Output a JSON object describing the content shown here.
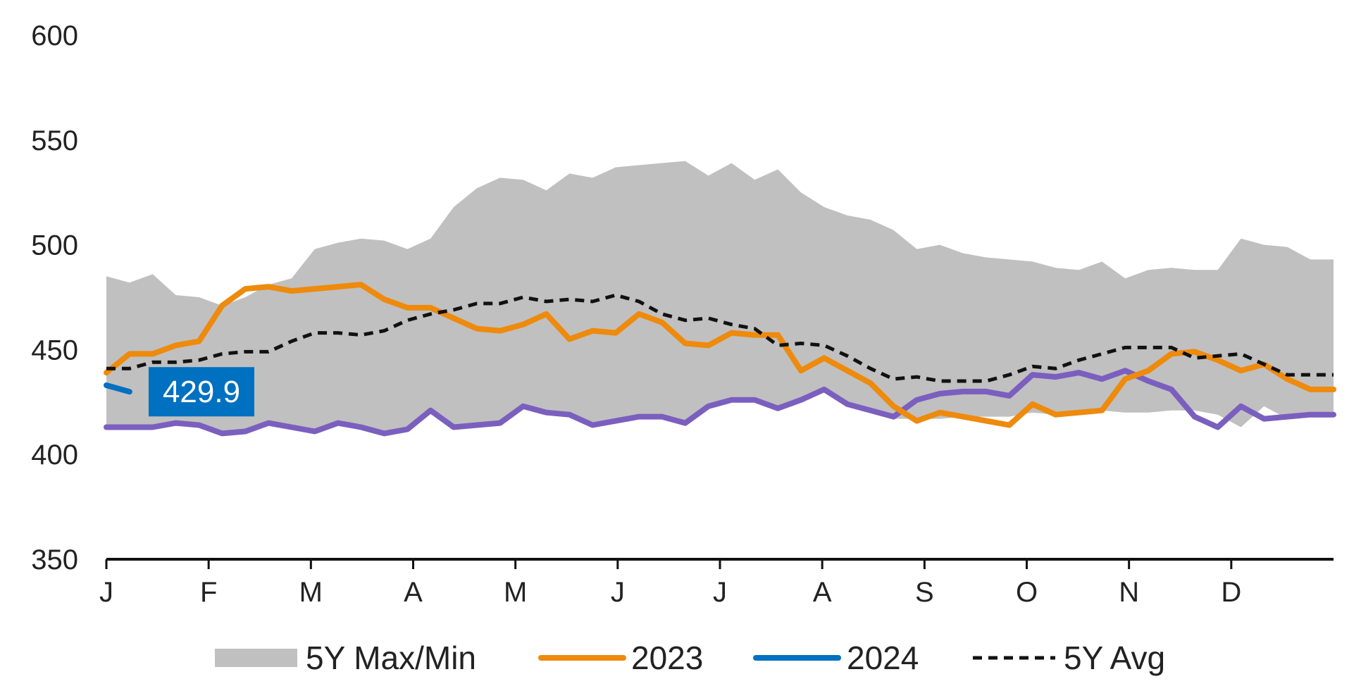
{
  "chart_data": {
    "type": "line",
    "title": "",
    "xlabel": "",
    "ylabel": "",
    "ylim": [
      350,
      600
    ],
    "yticks": [
      350,
      400,
      450,
      500,
      550,
      600
    ],
    "month_labels": [
      "J",
      "F",
      "M",
      "A",
      "M",
      "J",
      "J",
      "A",
      "S",
      "O",
      "N",
      "D"
    ],
    "weeks": 53,
    "grid": false,
    "legend_position": "bottom",
    "band": {
      "name": "5Y Max/Min",
      "color": "#c0c0c0",
      "max": [
        485,
        482,
        486,
        476,
        475,
        471,
        475,
        481,
        484,
        498,
        501,
        503,
        502,
        498,
        503,
        518,
        527,
        532,
        531,
        526,
        534,
        532,
        537,
        538,
        539,
        540,
        533,
        539,
        531,
        536,
        525,
        518,
        514,
        512,
        507,
        498,
        500,
        496,
        494,
        493,
        492,
        489,
        488,
        492,
        484,
        488,
        489,
        488,
        488,
        503,
        500,
        499,
        493,
        493
      ],
      "min": [
        413,
        413,
        413,
        414,
        414,
        410,
        411,
        415,
        413,
        411,
        414,
        413,
        410,
        412,
        421,
        413,
        414,
        415,
        423,
        420,
        419,
        414,
        416,
        418,
        418,
        415,
        423,
        426,
        426,
        422,
        426,
        431,
        424,
        420,
        417,
        417,
        417,
        418,
        418,
        418,
        420,
        419,
        420,
        421,
        420,
        420,
        421,
        421,
        419,
        413,
        423,
        417,
        418,
        419
      ]
    },
    "series": [
      {
        "name": "2023",
        "color": "#ee8a0c",
        "dashed": false,
        "values": [
          439,
          448,
          448,
          452,
          454,
          471,
          479,
          480,
          478,
          479,
          480,
          481,
          474,
          470,
          470,
          465,
          460,
          459,
          462,
          467,
          455,
          459,
          458,
          467,
          463,
          453,
          452,
          458,
          457,
          457,
          440,
          446,
          440,
          434,
          423,
          416,
          420,
          418,
          416,
          414,
          424,
          419,
          420,
          421,
          436,
          440,
          448,
          449,
          445,
          440,
          443,
          436,
          431,
          431
        ]
      },
      {
        "name": "2024",
        "color": "#0070c0",
        "dashed": false,
        "values": [
          433,
          429.9
        ]
      },
      {
        "name": "5Y Avg",
        "color": "#111111",
        "dashed": true,
        "values": [
          441,
          441,
          444,
          444,
          445,
          448,
          449,
          449,
          454,
          458,
          458,
          457,
          459,
          464,
          467,
          469,
          472,
          472,
          475,
          473,
          474,
          473,
          476,
          473,
          467,
          464,
          465,
          462,
          460,
          452,
          453,
          452,
          447,
          441,
          436,
          437,
          435,
          435,
          435,
          438,
          442,
          441,
          445,
          448,
          451,
          451,
          451,
          446,
          447,
          448,
          443,
          438,
          438,
          438
        ]
      },
      {
        "name": "",
        "color": "#7b5fbf",
        "dashed": false,
        "values": [
          413,
          413,
          413,
          415,
          414,
          410,
          411,
          415,
          413,
          411,
          415,
          413,
          410,
          412,
          421,
          413,
          414,
          415,
          423,
          420,
          419,
          414,
          416,
          418,
          418,
          415,
          423,
          426,
          426,
          422,
          426,
          431,
          424,
          421,
          418,
          426,
          429,
          430,
          430,
          428,
          438,
          437,
          439,
          436,
          440,
          435,
          431,
          418,
          413,
          423,
          417,
          418,
          419,
          419
        ]
      }
    ],
    "callout": {
      "text": "429.9",
      "color": "#0070c0"
    },
    "legend": [
      {
        "label": "5Y Max/Min",
        "kind": "band"
      },
      {
        "label": "2023",
        "kind": "line"
      },
      {
        "label": "2024",
        "kind": "line"
      },
      {
        "label": "5Y Avg",
        "kind": "dashed"
      }
    ]
  }
}
